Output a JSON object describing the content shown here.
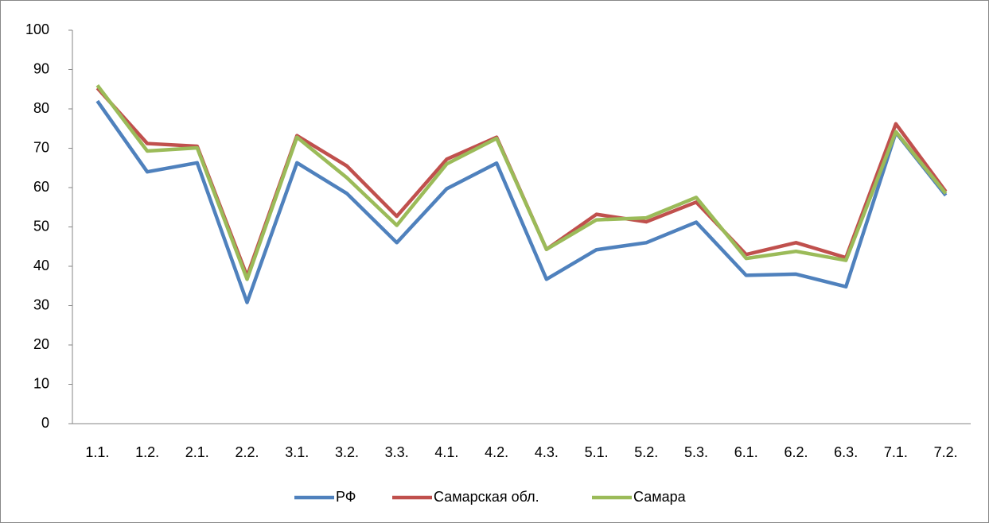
{
  "chart_data": {
    "type": "line",
    "categories": [
      "1.1.",
      "1.2.",
      "2.1.",
      "2.2.",
      "3.1.",
      "3.2.",
      "3.3.",
      "4.1.",
      "4.2.",
      "4.3.",
      "5.1.",
      "5.2.",
      "5.3.",
      "6.1.",
      "6.2.",
      "6.3.",
      "7.1.",
      "7.2."
    ],
    "series": [
      {
        "name": "РФ",
        "color": "#4f81bd",
        "values": [
          82,
          64,
          66.3,
          30.8,
          66.3,
          58.5,
          46,
          59.7,
          66.2,
          36.7,
          44.2,
          46,
          51.2,
          37.7,
          38,
          34.8,
          74,
          58
        ]
      },
      {
        "name": "Самарская обл.",
        "color": "#c0504d",
        "values": [
          85.3,
          71.2,
          70.5,
          37.5,
          73.2,
          65.5,
          52.7,
          67.2,
          72.8,
          44.3,
          53.2,
          51.3,
          56.3,
          43,
          46,
          42.2,
          76.2,
          59
        ]
      },
      {
        "name": "Самара",
        "color": "#9bbb59",
        "values": [
          86,
          69.3,
          70.1,
          36.7,
          72.8,
          62.5,
          50.4,
          66,
          72.5,
          44.3,
          51.8,
          52.3,
          57.5,
          42,
          43.8,
          41.5,
          74.2,
          58.5
        ]
      }
    ],
    "ylim": [
      0,
      100
    ],
    "yticks": [
      0,
      10,
      20,
      30,
      40,
      50,
      60,
      70,
      80,
      90,
      100
    ],
    "grid": false,
    "legend": "bottom"
  }
}
